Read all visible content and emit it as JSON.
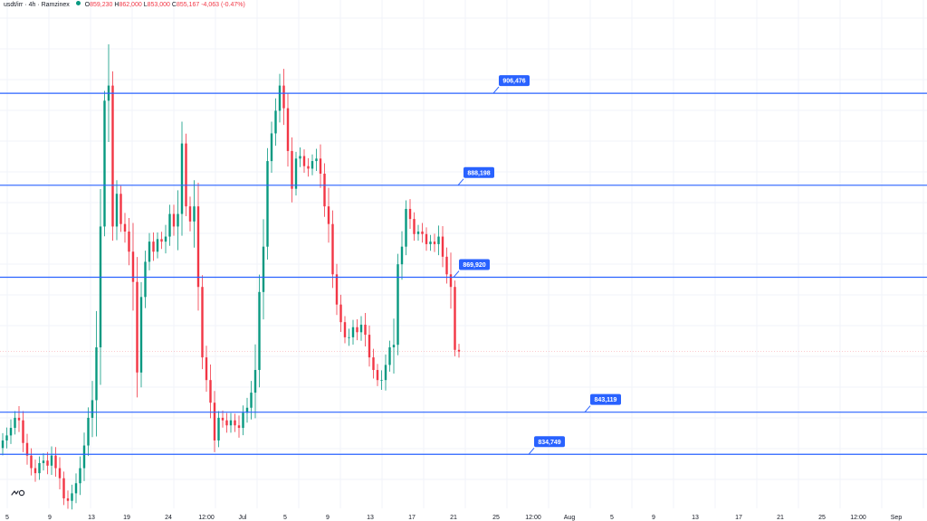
{
  "header": {
    "symbol": "usdt/irr · 4h · Ramzinex",
    "open_label": "O",
    "open": "859,230",
    "high_label": "H",
    "high": "862,000",
    "low_label": "L",
    "low": "853,000",
    "close_label": "C",
    "close": "855,167",
    "change": "-4,063 (-0.47%)"
  },
  "colors": {
    "up": "#089981",
    "down": "#f23645",
    "level_line": "#2962ff",
    "grid": "#f0f3fa",
    "axis_text": "#131722"
  },
  "logo_icon": "tradingview-logo-icon",
  "chart_data": {
    "type": "candlestick",
    "title": "usdt/irr · 4h · Ramzinex",
    "ylim": [
      821500,
      925000
    ],
    "x_ticks": [
      "5",
      "9",
      "13",
      "19",
      "24",
      "12:00",
      "Jul",
      "5",
      "9",
      "13",
      "17",
      "21",
      "25",
      "12:00",
      "Aug",
      "5",
      "9",
      "13",
      "17",
      "21",
      "25",
      "12:00",
      "Sep"
    ],
    "levels": [
      {
        "value": 906476,
        "label": "906,476"
      },
      {
        "value": 888198,
        "label": "888,198"
      },
      {
        "value": 869920,
        "label": "869,920"
      },
      {
        "value": 843119,
        "label": "843,119"
      },
      {
        "value": 834749,
        "label": "834,749"
      }
    ],
    "current_price": 855167,
    "closes": [
      837500,
      838500,
      840000,
      842000,
      841500,
      837000,
      834500,
      832000,
      831000,
      833000,
      833500,
      832500,
      834500,
      832000,
      830000,
      826000,
      825500,
      827000,
      829000,
      832000,
      836500,
      842000,
      845500,
      856000,
      880000,
      905000,
      908000,
      880000,
      886500,
      880500,
      879000,
      875000,
      869000,
      851000,
      866000,
      873000,
      877000,
      875000,
      877500,
      877000,
      878000,
      882500,
      880000,
      882500,
      896500,
      884000,
      881000,
      884000,
      868000,
      854000,
      849500,
      845000,
      837500,
      842000,
      841500,
      840500,
      841500,
      840500,
      840000,
      843000,
      844000,
      847000,
      851500,
      867000,
      876000,
      893000,
      898500,
      903000,
      908000,
      903500,
      895000,
      887500,
      893500,
      894000,
      892000,
      891500,
      893000,
      893500,
      890500,
      884000,
      880500,
      870500,
      864500,
      861000,
      858000,
      858000,
      860000,
      859000,
      860500,
      858500,
      854000,
      851500,
      849500,
      849500,
      852500,
      856000,
      856500,
      872500,
      876000,
      883500,
      881500,
      878500,
      879000,
      878500,
      876500,
      877000,
      876500,
      878000,
      874000,
      870500,
      868000,
      855500,
      855167
    ]
  }
}
